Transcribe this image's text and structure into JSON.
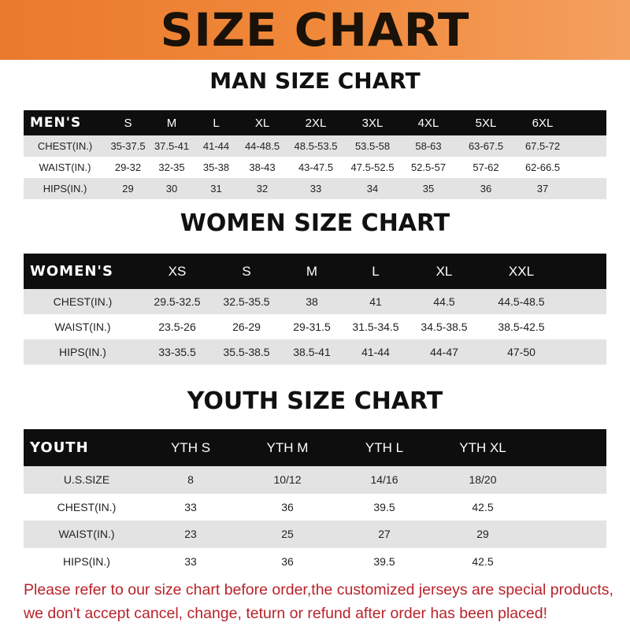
{
  "title": "SIZE CHART",
  "colors": {
    "banner": "#ea7a2e",
    "header_row": "#0e0e0e",
    "note": "#b8232a",
    "stripe": "#e3e3e3"
  },
  "men": {
    "title": "MAN SIZE CHART",
    "header": [
      "MEN'S",
      "S",
      "M",
      "L",
      "XL",
      "2XL",
      "3XL",
      "4XL",
      "5XL",
      "6XL"
    ],
    "rows": [
      [
        "CHEST(IN.)",
        "35-37.5",
        "37.5-41",
        "41-44",
        "44-48.5",
        "48.5-53.5",
        "53.5-58",
        "58-63",
        "63-67.5",
        "67.5-72"
      ],
      [
        "WAIST(IN.)",
        "29-32",
        "32-35",
        "35-38",
        "38-43",
        "43-47.5",
        "47.5-52.5",
        "52.5-57",
        "57-62",
        "62-66.5"
      ],
      [
        "HIPS(IN.)",
        "29",
        "30",
        "31",
        "32",
        "33",
        "34",
        "35",
        "36",
        "37"
      ]
    ]
  },
  "women": {
    "title": "WOMEN SIZE CHART",
    "header": [
      "WOMEN'S",
      "XS",
      "S",
      "M",
      "L",
      "XL",
      "XXL"
    ],
    "rows": [
      [
        "CHEST(IN.)",
        "29.5-32.5",
        "32.5-35.5",
        "38",
        "41",
        "44.5",
        "44.5-48.5"
      ],
      [
        "WAIST(IN.)",
        "23.5-26",
        "26-29",
        "29-31.5",
        "31.5-34.5",
        "34.5-38.5",
        "38.5-42.5"
      ],
      [
        "HIPS(IN.)",
        "33-35.5",
        "35.5-38.5",
        "38.5-41",
        "41-44",
        "44-47",
        "47-50"
      ]
    ]
  },
  "youth": {
    "title": "YOUTH SIZE CHART",
    "header": [
      "YOUTH",
      "YTH S",
      "YTH M",
      "YTH L",
      "YTH XL"
    ],
    "rows": [
      [
        "U.S.SIZE",
        "8",
        "10/12",
        "14/16",
        "18/20"
      ],
      [
        "CHEST(IN.)",
        "33",
        "36",
        "39.5",
        "42.5"
      ],
      [
        "WAIST(IN.)",
        "23",
        "25",
        "27",
        "29"
      ],
      [
        "HIPS(IN.)",
        "33",
        "36",
        "39.5",
        "42.5"
      ]
    ]
  },
  "note": {
    "line1": "Please refer to our size chart before order,the customized jerseys are special products,",
    "line2": "we don't accept cancel, change, teturn or refund after order has been placed!"
  }
}
